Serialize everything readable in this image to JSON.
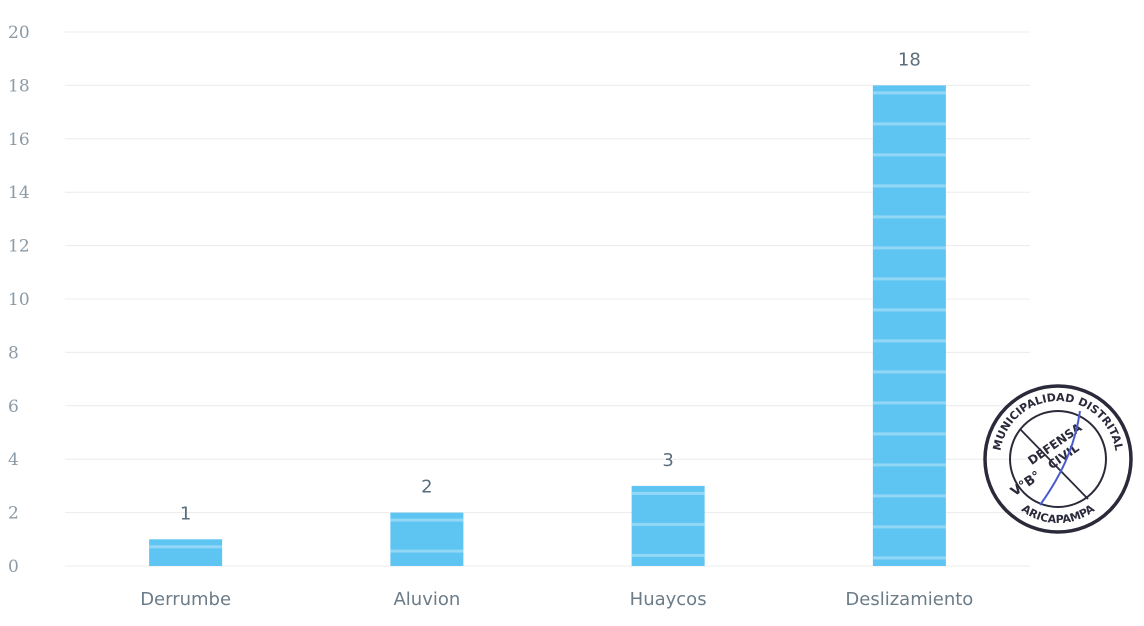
{
  "chart_data": {
    "type": "bar",
    "categories": [
      "Derrumbe",
      "Aluvion",
      "Huaycos",
      "Deslizamiento"
    ],
    "values": [
      1,
      2,
      3,
      18
    ],
    "data_labels": [
      "1",
      "2",
      "3",
      "18"
    ],
    "title": "",
    "xlabel": "",
    "ylabel": "",
    "ylim": [
      0,
      20
    ],
    "yticks": [
      0,
      2,
      4,
      6,
      8,
      10,
      12,
      14,
      16,
      18,
      20
    ],
    "grid": true,
    "legend": "none",
    "bar_color": "#5ec4f2",
    "bar_stripe_color": "#a9e0f8"
  },
  "stamp": {
    "ring_text_top": "MUNICIPALIDAD DISTRITAL",
    "ring_text_bottom": "ARICAPAMPA",
    "center_line_1": "DEFENSA",
    "center_line_2": "CIVIL",
    "mark": "V°B°",
    "ink_color": "#2a2a3a",
    "signature_color": "#4a5bd0"
  }
}
